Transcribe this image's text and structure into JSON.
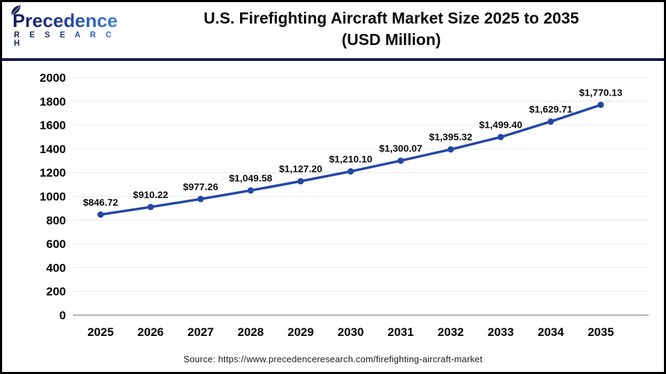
{
  "header": {
    "logo": {
      "name": "Precedence",
      "sub": "R E S E A R C H"
    },
    "title_line1": "U.S. Firefighting Aircraft Market Size 2025 to 2035",
    "title_line2": "(USD Million)"
  },
  "chart_data": {
    "type": "line",
    "title": "U.S. Firefighting Aircraft Market Size 2025 to 2035 (USD Million)",
    "categories": [
      "2025",
      "2026",
      "2027",
      "2028",
      "2029",
      "2030",
      "2031",
      "2032",
      "2033",
      "2034",
      "2035"
    ],
    "values": [
      846.72,
      910.22,
      977.26,
      1049.58,
      1127.2,
      1210.1,
      1300.07,
      1395.32,
      1499.4,
      1629.71,
      1770.13
    ],
    "point_labels": [
      "$846.72",
      "$910.22",
      "$977.26",
      "$1,049.58",
      "$1,127.20",
      "$1,210.10",
      "$1,300.07",
      "$1,395.32",
      "$1,499.40",
      "$1,629.71",
      "$1,770.13"
    ],
    "xlabel": "",
    "ylabel": "",
    "ylim": [
      0,
      2000
    ],
    "ytick_step": 200,
    "grid": true,
    "legend_position": "none",
    "line_color": "#2346a7",
    "marker": "circle"
  },
  "footer": {
    "source": "Source: https://www.precedenceresearch.com/firefighting-aircraft-market"
  },
  "colors": {
    "grid": "#ececec",
    "axis_line": "#b0b0b0",
    "tick_text": "#000000",
    "header_divider": "#14174e",
    "logo_dark": "#141a4f",
    "logo_light": "#3f83e0"
  }
}
